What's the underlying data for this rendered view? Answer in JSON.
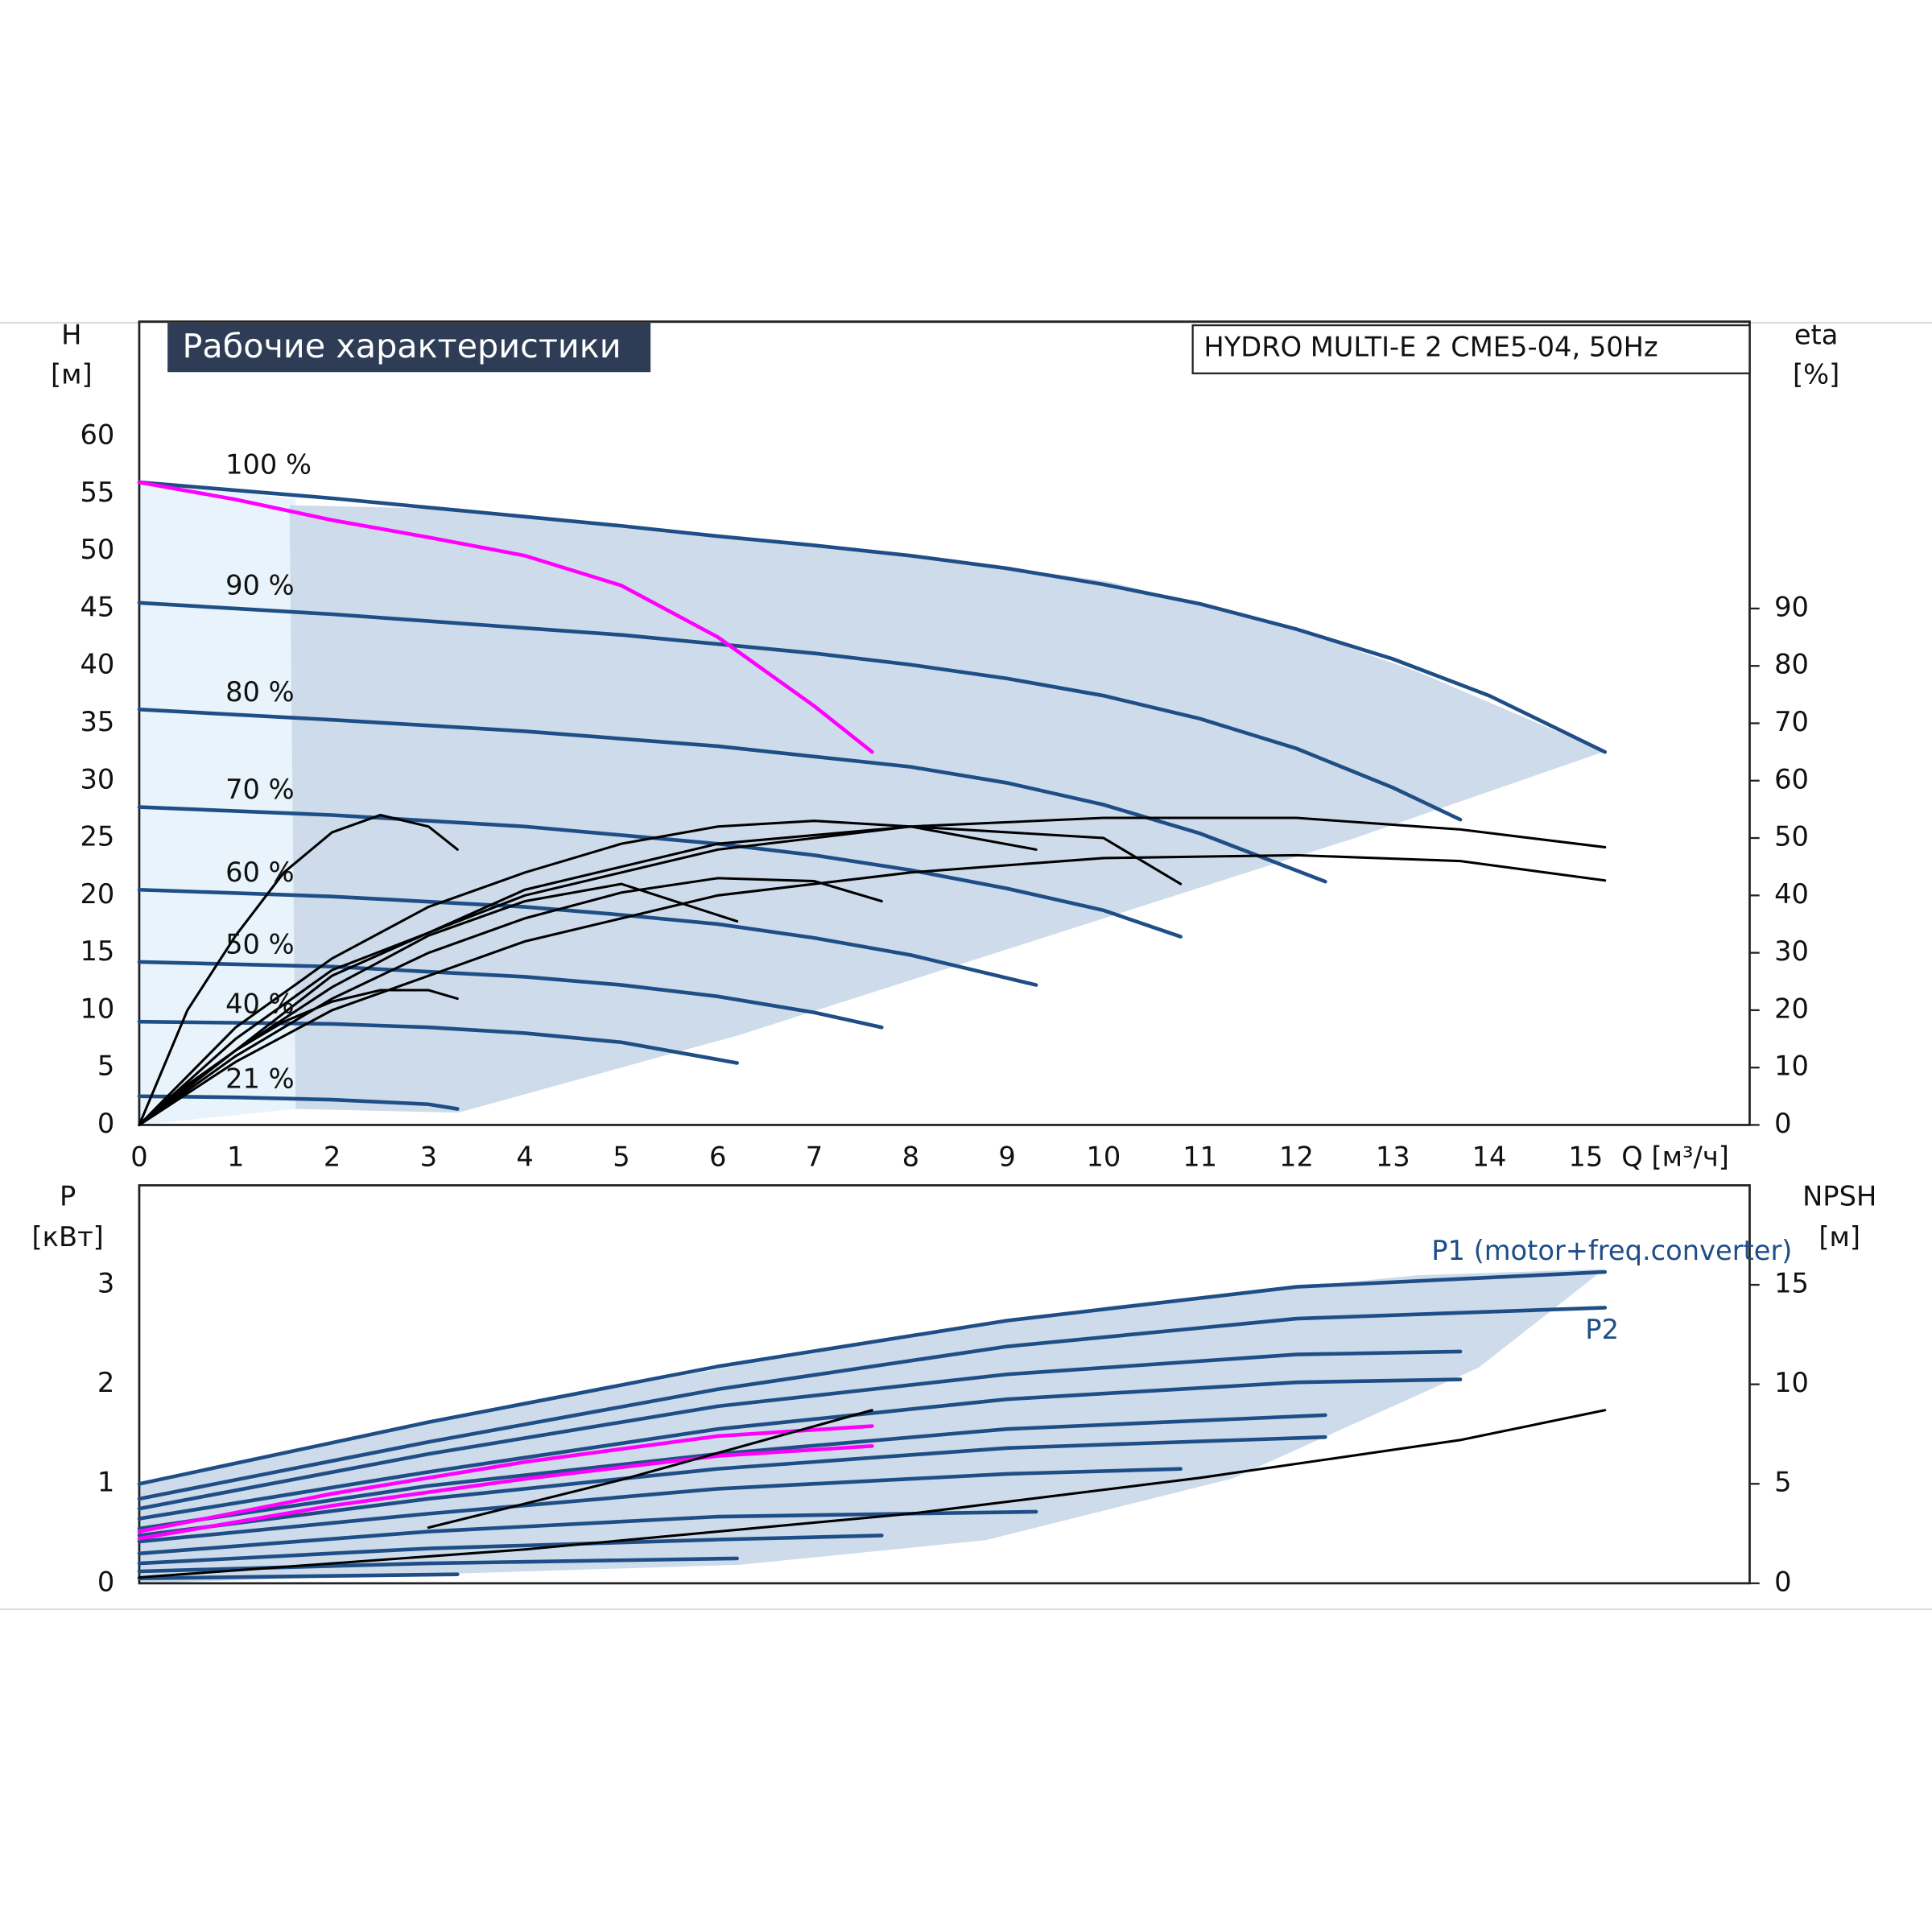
{
  "chart_data": [
    {
      "type": "line",
      "title": "Рабочие характеристики",
      "subtitle": "HYDRO MULTI-E 2 CME5-04, 50Hz",
      "ylabel": "H",
      "yunit": "[м]",
      "y2label": "eta",
      "y2unit": "[%]",
      "xlabel": "Q [м³/ч]",
      "xlim": [
        0,
        16.7
      ],
      "xticks": [
        0,
        1,
        2,
        3,
        4,
        5,
        6,
        7,
        8,
        9,
        10,
        11,
        12,
        13,
        14,
        15
      ],
      "ylim": [
        0,
        70
      ],
      "yticks": [
        0,
        5,
        10,
        15,
        20,
        25,
        30,
        35,
        40,
        45,
        50,
        55,
        60
      ],
      "y2lim": [
        0,
        140
      ],
      "y2ticks": [
        0,
        10,
        20,
        30,
        40,
        50,
        60,
        70,
        80,
        90
      ],
      "grid": true,
      "series": [
        {
          "name": "100 %",
          "color": "#1f4e86",
          "x": [
            0,
            1,
            2,
            3,
            4,
            5,
            6,
            7,
            8,
            9,
            10,
            11,
            12,
            13,
            14,
            15.2
          ],
          "values": [
            56,
            55.3,
            54.6,
            53.8,
            53,
            52.2,
            51.3,
            50.5,
            49.6,
            48.5,
            47.1,
            45.4,
            43.2,
            40.6,
            37.4,
            32.5
          ]
        },
        {
          "name": "90 %",
          "color": "#1f4e86",
          "x": [
            0,
            1,
            2,
            3,
            4,
            5,
            6,
            7,
            8,
            9,
            10,
            11,
            12,
            13,
            13.7
          ],
          "values": [
            45.5,
            45,
            44.5,
            43.9,
            43.3,
            42.7,
            41.9,
            41.1,
            40.1,
            38.9,
            37.4,
            35.4,
            32.8,
            29.4,
            26.6
          ]
        },
        {
          "name": "80 %",
          "color": "#1f4e86",
          "x": [
            0,
            2,
            4,
            6,
            8,
            9,
            10,
            11,
            12.3
          ],
          "values": [
            36.2,
            35.3,
            34.3,
            33,
            31.2,
            29.8,
            27.9,
            25.4,
            21.2
          ]
        },
        {
          "name": "70 %",
          "color": "#1f4e86",
          "x": [
            0,
            2,
            4,
            6,
            7,
            8,
            9,
            10,
            10.8
          ],
          "values": [
            27.7,
            27,
            26,
            24.5,
            23.5,
            22.2,
            20.6,
            18.7,
            16.4
          ]
        },
        {
          "name": "60 %",
          "color": "#1f4e86",
          "x": [
            0,
            2,
            4,
            5,
            6,
            7,
            8,
            9.3
          ],
          "values": [
            20.5,
            19.9,
            19,
            18.3,
            17.5,
            16.3,
            14.8,
            12.2
          ]
        },
        {
          "name": "50 %",
          "color": "#1f4e86",
          "x": [
            0,
            2,
            4,
            5,
            6,
            7,
            7.7
          ],
          "values": [
            14.2,
            13.8,
            12.9,
            12.2,
            11.2,
            9.8,
            8.5
          ]
        },
        {
          "name": "40 %",
          "color": "#1f4e86",
          "x": [
            0,
            2,
            3,
            4,
            5,
            6.2
          ],
          "values": [
            9,
            8.8,
            8.5,
            8,
            7.2,
            5.4
          ]
        },
        {
          "name": "21 %",
          "color": "#1f4e86",
          "x": [
            0,
            1,
            2,
            3,
            3.3
          ],
          "values": [
            2.5,
            2.4,
            2.2,
            1.8,
            1.4
          ]
        },
        {
          "color": "#ff00ff",
          "x": [
            0,
            1,
            2,
            3,
            4,
            5,
            6,
            7,
            7.6
          ],
          "values": [
            56,
            54.5,
            52.7,
            51.2,
            49.6,
            47,
            42.5,
            36.5,
            32.5
          ]
        },
        {
          "color": "#000000",
          "axis": "y2",
          "x": [
            0,
            1,
            2,
            4,
            6,
            8,
            10,
            12,
            13.7,
            15.2
          ],
          "values": [
            0,
            15,
            27,
            40,
            48,
            52,
            53.5,
            53.5,
            51.5,
            48.4
          ]
        },
        {
          "color": "#000000",
          "axis": "y2",
          "x": [
            0,
            1,
            2,
            4,
            6,
            8,
            10,
            12,
            13.7,
            15.2
          ],
          "values": [
            0,
            11,
            20,
            32,
            40,
            44,
            46.5,
            47,
            46,
            42.6
          ]
        },
        {
          "color": "#000000",
          "axis": "y2",
          "x": [
            0,
            0.5,
            1,
            1.5,
            2,
            2.5,
            3,
            3.3
          ],
          "values": [
            0,
            20,
            33,
            44,
            51,
            54,
            52,
            48
          ]
        },
        {
          "color": "#000000",
          "axis": "y2",
          "x": [
            0,
            0.5,
            1,
            1.5,
            2,
            2.5,
            3,
            3.3
          ],
          "values": [
            0,
            7,
            13,
            18,
            21.5,
            23.5,
            23.5,
            22
          ]
        },
        {
          "color": "#000000",
          "axis": "y2",
          "x": [
            0,
            1,
            2,
            3,
            4,
            5,
            6,
            7,
            8,
            9.3
          ],
          "values": [
            0,
            17,
            29,
            38,
            44,
            49,
            52,
            53,
            52,
            48
          ]
        },
        {
          "color": "#000000",
          "axis": "y2",
          "x": [
            0,
            1,
            2,
            3,
            4,
            5,
            6,
            7,
            7.7
          ],
          "values": [
            0,
            12,
            22,
            30,
            36,
            40.5,
            43,
            42.5,
            39
          ]
        },
        {
          "color": "#000000",
          "axis": "y2",
          "x": [
            0,
            1,
            2,
            3,
            4,
            5,
            6.2
          ],
          "values": [
            0,
            13,
            24,
            33,
            39,
            42,
            35.5
          ]
        },
        {
          "color": "#000000",
          "axis": "y2",
          "x": [
            0,
            2,
            4,
            6,
            8,
            10,
            10.8
          ],
          "values": [
            0,
            26,
            41,
            49,
            52,
            50,
            42
          ]
        }
      ]
    },
    {
      "type": "line",
      "ylabel": "P",
      "yunit": "[кВт]",
      "y2label": "NPSH",
      "y2unit": "[м]",
      "xlim": [
        0,
        16.7
      ],
      "xticks": [
        0,
        1,
        2,
        3,
        4,
        5,
        6,
        7,
        8,
        9,
        10,
        11,
        12,
        13,
        14,
        15
      ],
      "xtick_labels": false,
      "ylim": [
        0,
        4
      ],
      "yticks": [
        0,
        1,
        2,
        3
      ],
      "y2lim": [
        0,
        20
      ],
      "y2ticks": [
        0,
        5,
        10,
        15
      ],
      "grid": true,
      "series": [
        {
          "name": "P1 (motor+freq.converter)",
          "color": "#1f4e86",
          "x": [
            0,
            3,
            6,
            9,
            12,
            15.2
          ],
          "values": [
            1.0,
            1.62,
            2.18,
            2.64,
            2.98,
            3.13
          ]
        },
        {
          "name": "P2",
          "color": "#1f4e86",
          "x": [
            0,
            3,
            6,
            9,
            12,
            15.2
          ],
          "values": [
            0.85,
            1.42,
            1.95,
            2.38,
            2.66,
            2.77
          ]
        },
        {
          "color": "#1f4e86",
          "x": [
            0,
            3,
            6,
            9,
            12,
            13.7
          ],
          "values": [
            0.75,
            1.3,
            1.78,
            2.1,
            2.3,
            2.33
          ]
        },
        {
          "color": "#1f4e86",
          "x": [
            0,
            3,
            6,
            9,
            12,
            13.7
          ],
          "values": [
            0.65,
            1.12,
            1.55,
            1.85,
            2.02,
            2.05
          ]
        },
        {
          "color": "#1f4e86",
          "x": [
            0,
            3,
            6,
            9,
            12.3
          ],
          "values": [
            0.55,
            0.98,
            1.3,
            1.55,
            1.69
          ]
        },
        {
          "color": "#1f4e86",
          "x": [
            0,
            3,
            6,
            9,
            12.3
          ],
          "values": [
            0.48,
            0.85,
            1.15,
            1.36,
            1.47
          ]
        },
        {
          "color": "#1f4e86",
          "x": [
            0,
            3,
            6,
            9,
            10.8
          ],
          "values": [
            0.42,
            0.7,
            0.95,
            1.1,
            1.15
          ]
        },
        {
          "color": "#1f4e86",
          "x": [
            0,
            3,
            6,
            9.3
          ],
          "values": [
            0.3,
            0.52,
            0.67,
            0.72
          ]
        },
        {
          "color": "#1f4e86",
          "x": [
            0,
            3,
            6,
            7.7
          ],
          "values": [
            0.2,
            0.35,
            0.44,
            0.48
          ]
        },
        {
          "color": "#1f4e86",
          "x": [
            0,
            3,
            6.2
          ],
          "values": [
            0.12,
            0.2,
            0.25
          ]
        },
        {
          "color": "#1f4e86",
          "x": [
            0,
            3.3
          ],
          "values": [
            0.05,
            0.09
          ]
        },
        {
          "color": "#ff00ff",
          "x": [
            0,
            2,
            4,
            6,
            7.6
          ],
          "values": [
            0.52,
            0.9,
            1.22,
            1.48,
            1.58
          ]
        },
        {
          "color": "#ff00ff",
          "x": [
            0,
            2,
            4,
            6,
            7.6
          ],
          "values": [
            0.45,
            0.78,
            1.05,
            1.28,
            1.38
          ]
        },
        {
          "color": "#000000",
          "axis": "y2",
          "x": [
            0,
            4,
            8,
            11,
            13.7,
            15.2
          ],
          "values": [
            0.3,
            1.7,
            3.5,
            5.3,
            7.2,
            8.7
          ]
        },
        {
          "color": "#000000",
          "axis": "y2",
          "x": [
            3,
            5,
            7.6
          ],
          "values": [
            2.8,
            5.2,
            8.7
          ]
        }
      ]
    }
  ]
}
